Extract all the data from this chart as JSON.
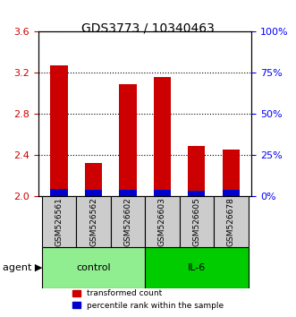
{
  "title": "GDS3773 / 10340463",
  "samples": [
    "GSM526561",
    "GSM526562",
    "GSM526602",
    "GSM526603",
    "GSM526605",
    "GSM526678"
  ],
  "groups": [
    "control",
    "control",
    "control",
    "IL-6",
    "IL-6",
    "IL-6"
  ],
  "group_colors": {
    "control": "#90EE90",
    "IL-6": "#00CC00"
  },
  "red_values": [
    3.27,
    2.33,
    3.09,
    3.16,
    2.49,
    2.46
  ],
  "blue_values": [
    0.075,
    0.065,
    0.065,
    0.065,
    0.06,
    0.065
  ],
  "red_base": 2.0,
  "ylim_left": [
    2.0,
    3.6
  ],
  "ylim_right": [
    0,
    100
  ],
  "yticks_left": [
    2.0,
    2.4,
    2.8,
    3.2,
    3.6
  ],
  "yticks_right": [
    0,
    25,
    50,
    75,
    100
  ],
  "ytick_labels_right": [
    "0%",
    "25%",
    "50%",
    "75%",
    "100%"
  ],
  "red_color": "#CC0000",
  "blue_color": "#0000CC",
  "bar_width": 0.5,
  "legend_red": "transformed count",
  "legend_blue": "percentile rank within the sample",
  "agent_label": "agent",
  "bg_color_plot": "#ffffff",
  "bg_color_sample": "#cccccc",
  "grid_color": "#000000"
}
